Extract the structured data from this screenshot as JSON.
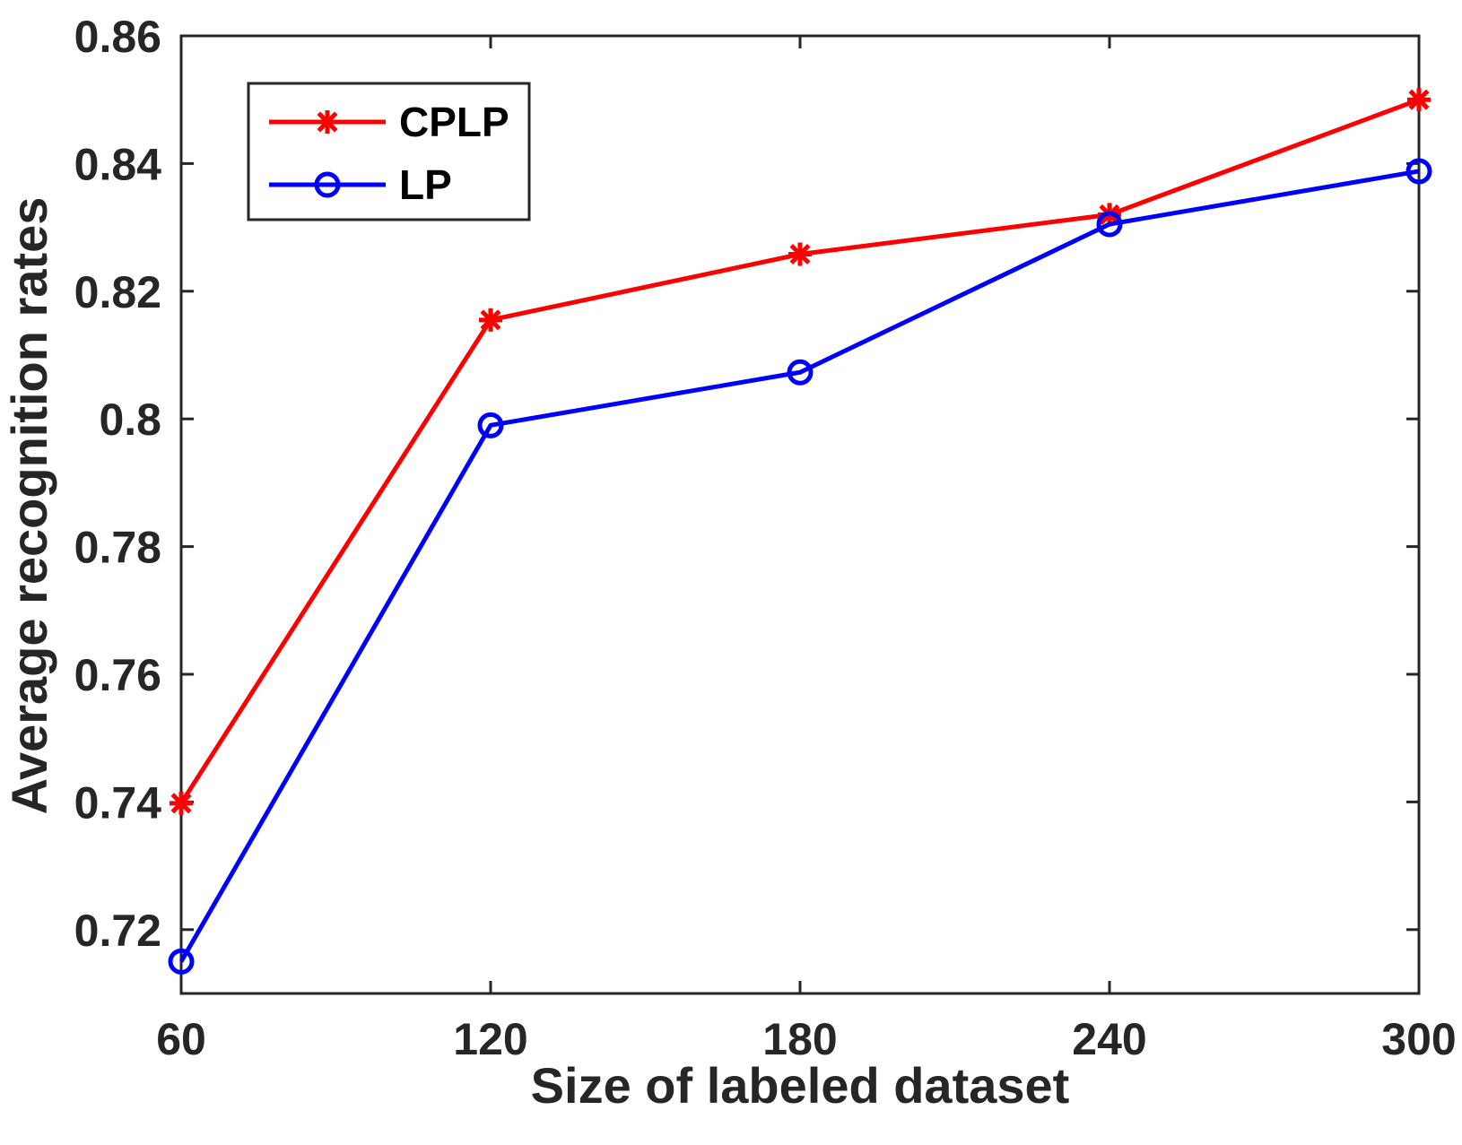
{
  "chart_data": {
    "type": "line",
    "title": "",
    "xlabel": "Size of labeled dataset",
    "ylabel": "Average recognition rates",
    "x": [
      60,
      120,
      180,
      240,
      300
    ],
    "xticks": [
      60,
      120,
      180,
      240,
      300
    ],
    "xtick_labels": [
      "60",
      "120",
      "180",
      "240",
      "300"
    ],
    "yticks": [
      0.72,
      0.74,
      0.76,
      0.78,
      0.8,
      0.82,
      0.84,
      0.86
    ],
    "ytick_labels": [
      "0.72",
      "0.74",
      "0.76",
      "0.78",
      "0.8",
      "0.82",
      "0.84",
      "0.86"
    ],
    "xlim": [
      60,
      300
    ],
    "ylim": [
      0.71,
      0.86
    ],
    "grid": false,
    "legend_position": "top-left",
    "series": [
      {
        "name": "CPLP",
        "color": "#ff0000",
        "marker": "asterisk",
        "values": [
          0.7398,
          0.8155,
          0.8258,
          0.832,
          0.85
        ]
      },
      {
        "name": "LP",
        "color": "#0000ff",
        "marker": "circle",
        "values": [
          0.715,
          0.799,
          0.8073,
          0.8305,
          0.8388
        ]
      }
    ]
  }
}
